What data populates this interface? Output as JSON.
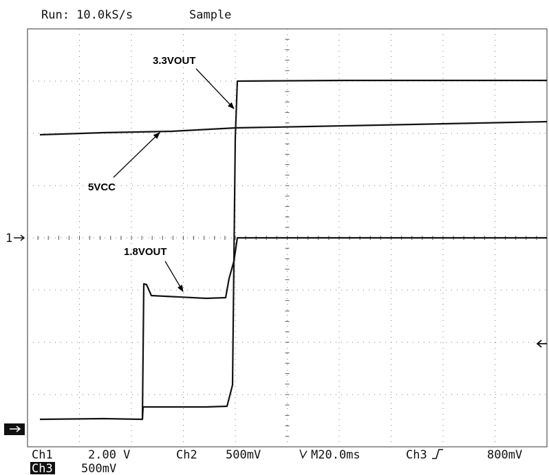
{
  "header": {
    "run": "Run: 10.0kS/s",
    "mode": "Sample"
  },
  "annotations": {
    "v33": "3.3VOUT",
    "v5": "5VCC",
    "v18": "1.8VOUT"
  },
  "markers": {
    "ch1": "1"
  },
  "status": {
    "ch1": "Ch1",
    "ch1_scale": "2.00 V",
    "ch2": "Ch2",
    "ch2_scale": "500mV",
    "time": "M20.0ms",
    "ch3": "Ch3",
    "ch3_trigger": "800mV",
    "ch3_row": "Ch3",
    "ch3_scale": "500mV"
  }
}
